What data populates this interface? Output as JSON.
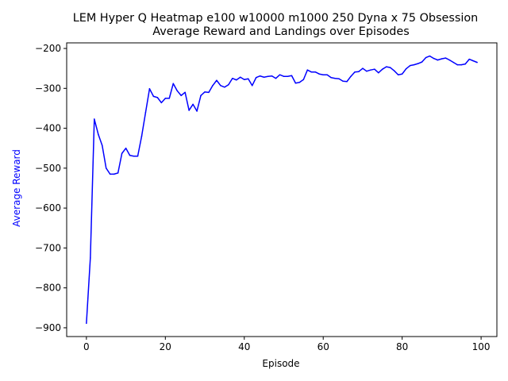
{
  "chart_data": {
    "type": "line",
    "title_line1": "LEM Hyper  Q Heatmap e100 w10000 m1000 250 Dyna x 75 Obsession",
    "title_line2": "Average Reward and Landings over Episodes",
    "xlabel": "Episode",
    "ylabel": "Average Reward",
    "xlim": [
      -5,
      104
    ],
    "ylim": [
      -922,
      -186
    ],
    "x_ticks": [
      0,
      20,
      40,
      60,
      80,
      100
    ],
    "y_ticks": [
      -900,
      -800,
      -700,
      -600,
      -500,
      -400,
      -300,
      -200
    ],
    "grid": false,
    "colors": {
      "series": "#0000ff",
      "ylabel": "#0000ff",
      "axes": "#000000"
    },
    "series": [
      {
        "x": [
          0,
          1,
          2,
          3,
          4,
          5,
          6,
          7,
          8,
          9,
          10,
          11,
          12,
          13,
          14,
          15,
          16,
          17,
          18,
          19,
          20,
          21,
          22,
          23,
          24,
          25,
          26,
          27,
          28,
          29,
          30,
          31,
          32,
          33,
          34,
          35,
          36,
          37,
          38,
          39,
          40,
          41,
          42,
          43,
          44,
          45,
          46,
          47,
          48,
          49,
          50,
          51,
          52,
          53,
          54,
          55,
          56,
          57,
          58,
          59,
          60,
          61,
          62,
          63,
          64,
          65,
          66,
          67,
          68,
          69,
          70,
          71,
          72,
          73,
          74,
          75,
          76,
          77,
          78,
          79,
          80,
          81,
          82,
          83,
          84,
          85,
          86,
          87,
          88,
          89,
          90,
          91,
          92,
          93,
          94,
          95,
          96,
          97,
          98,
          99
        ],
        "values": [
          -889,
          -725,
          -377,
          -415,
          -443,
          -500,
          -515,
          -515,
          -512,
          -463,
          -450,
          -468,
          -470,
          -470,
          -420,
          -360,
          -301,
          -320,
          -323,
          -336,
          -325,
          -325,
          -288,
          -306,
          -318,
          -310,
          -355,
          -340,
          -357,
          -318,
          -309,
          -310,
          -293,
          -280,
          -293,
          -297,
          -291,
          -275,
          -279,
          -272,
          -278,
          -276,
          -293,
          -273,
          -269,
          -272,
          -270,
          -269,
          -275,
          -266,
          -270,
          -270,
          -268,
          -287,
          -285,
          -278,
          -254,
          -259,
          -259,
          -264,
          -266,
          -266,
          -273,
          -275,
          -276,
          -282,
          -283,
          -270,
          -259,
          -258,
          -250,
          -257,
          -254,
          -252,
          -261,
          -252,
          -246,
          -248,
          -256,
          -266,
          -264,
          -251,
          -243,
          -241,
          -238,
          -234,
          -223,
          -219,
          -225,
          -229,
          -226,
          -224,
          -229,
          -235,
          -241,
          -241,
          -239,
          -227,
          -231,
          -235
        ]
      }
    ]
  }
}
